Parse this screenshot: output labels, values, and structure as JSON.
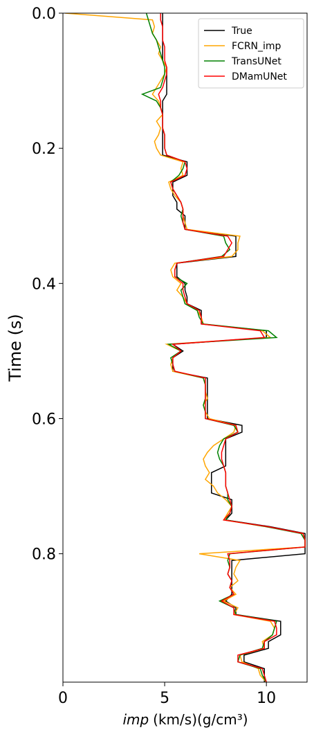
{
  "chart_data": {
    "type": "line",
    "orientation": "vertical",
    "time_axis_label": "Time (s)",
    "value_axis_label": {
      "symbol": "imp",
      "unit": "(km/s)(g/cm³)"
    },
    "x": [
      0,
      0.01,
      0.02,
      0.03,
      0.04,
      0.05,
      0.06,
      0.07,
      0.08,
      0.09,
      0.1,
      0.11,
      0.12,
      0.13,
      0.14,
      0.15,
      0.16,
      0.17,
      0.18,
      0.19,
      0.2,
      0.21,
      0.22,
      0.23,
      0.24,
      0.25,
      0.26,
      0.27,
      0.28,
      0.29,
      0.3,
      0.31,
      0.32,
      0.33,
      0.34,
      0.35,
      0.36,
      0.37,
      0.38,
      0.39,
      0.4,
      0.41,
      0.42,
      0.43,
      0.44,
      0.45,
      0.46,
      0.47,
      0.48,
      0.49,
      0.5,
      0.51,
      0.52,
      0.53,
      0.54,
      0.55,
      0.56,
      0.57,
      0.58,
      0.59,
      0.6,
      0.61,
      0.62,
      0.63,
      0.64,
      0.65,
      0.66,
      0.67,
      0.68,
      0.69,
      0.7,
      0.71,
      0.72,
      0.73,
      0.74,
      0.75,
      0.76,
      0.77,
      0.78,
      0.79,
      0.8,
      0.81,
      0.82,
      0.83,
      0.84,
      0.85,
      0.86,
      0.87,
      0.88,
      0.89,
      0.9,
      0.91,
      0.92,
      0.93,
      0.94,
      0.95,
      0.96,
      0.97,
      0.98,
      0.99
    ],
    "xlim": [
      0,
      0.99
    ],
    "xticks": [
      {
        "value": 0,
        "label": "0.0"
      },
      0.2,
      0.4,
      0.6,
      0.8
    ],
    "ylim": [
      0,
      12
    ],
    "yticks": [
      0,
      5,
      10
    ],
    "legend": "upper right",
    "series": [
      {
        "name": "True",
        "color": "#000000",
        "values": [
          4.9,
          4.9,
          4.9,
          4.9,
          4.9,
          4.9,
          4.9,
          4.9,
          5.1,
          5.1,
          5.1,
          5.1,
          5.1,
          4.9,
          4.9,
          4.9,
          4.9,
          4.9,
          4.9,
          4.9,
          4.9,
          4.9,
          6.1,
          6.1,
          6.1,
          5.4,
          5.4,
          5.4,
          5.6,
          5.6,
          6.0,
          6.0,
          6.0,
          8.5,
          8.5,
          8.5,
          8.5,
          5.6,
          5.6,
          5.6,
          6.0,
          6.0,
          6.1,
          6.1,
          6.8,
          6.8,
          6.8,
          10.0,
          10.0,
          5.4,
          5.9,
          5.4,
          5.4,
          5.4,
          7.1,
          7.1,
          7.1,
          7.1,
          7.1,
          7.1,
          7.1,
          8.8,
          8.8,
          8.0,
          8.0,
          8.0,
          8.0,
          8.0,
          7.3,
          7.3,
          7.3,
          7.3,
          8.3,
          8.3,
          8.3,
          8.0,
          10.2,
          11.9,
          11.9,
          11.9,
          11.9,
          8.3,
          8.3,
          8.3,
          8.3,
          8.3,
          8.3,
          8.0,
          8.5,
          8.5,
          10.7,
          10.7,
          10.7,
          10.1,
          10.1,
          8.9,
          8.9,
          9.9,
          9.9,
          9.9
        ]
      },
      {
        "name": "FCRN_imp",
        "color": "#ffa500",
        "values": [
          0.1,
          4.4,
          4.5,
          4.4,
          4.6,
          4.8,
          4.7,
          4.9,
          5.1,
          5.0,
          4.8,
          4.6,
          4.4,
          4.7,
          4.8,
          4.9,
          4.6,
          4.8,
          4.7,
          4.5,
          4.6,
          4.8,
          5.9,
          5.8,
          5.9,
          5.2,
          5.3,
          5.5,
          5.8,
          5.9,
          5.9,
          6.0,
          6.1,
          8.7,
          8.6,
          8.6,
          8.3,
          5.5,
          5.3,
          5.4,
          5.8,
          5.6,
          5.9,
          6.1,
          6.6,
          6.8,
          6.9,
          9.8,
          10.2,
          5.1,
          5.8,
          5.4,
          5.3,
          5.4,
          6.9,
          7.0,
          7.0,
          7.1,
          6.9,
          7.0,
          7.2,
          8.5,
          8.4,
          7.9,
          7.4,
          7.1,
          6.9,
          7.0,
          7.2,
          7.0,
          7.4,
          7.6,
          8.0,
          8.3,
          8.1,
          7.9,
          10.0,
          11.8,
          11.9,
          11.9,
          6.7,
          8.7,
          8.5,
          8.4,
          8.6,
          8.2,
          8.5,
          7.9,
          8.6,
          8.4,
          10.2,
          10.4,
          10.3,
          9.8,
          9.9,
          8.7,
          8.8,
          9.6,
          9.7,
          10.0
        ]
      },
      {
        "name": "TransUNet",
        "color": "#008000",
        "values": [
          4.1,
          4.2,
          4.3,
          4.4,
          4.6,
          4.7,
          4.8,
          4.9,
          5.0,
          5.0,
          4.9,
          4.8,
          3.9,
          4.6,
          4.8,
          4.9,
          4.9,
          4.9,
          5.0,
          5.0,
          5.0,
          5.1,
          6.0,
          5.9,
          5.7,
          5.3,
          5.4,
          5.6,
          5.8,
          5.9,
          5.8,
          5.9,
          6.0,
          7.9,
          8.0,
          8.2,
          7.8,
          5.6,
          5.5,
          5.5,
          6.1,
          5.8,
          5.9,
          6.0,
          6.6,
          6.7,
          6.9,
          10.1,
          10.5,
          5.2,
          5.8,
          5.3,
          5.4,
          5.5,
          6.9,
          7.0,
          7.0,
          7.0,
          6.9,
          7.0,
          7.0,
          8.4,
          8.6,
          7.9,
          7.7,
          7.6,
          7.7,
          7.9,
          8.0,
          8.0,
          8.0,
          8.1,
          8.1,
          8.3,
          8.2,
          8.0,
          10.0,
          11.7,
          11.9,
          11.9,
          8.2,
          8.1,
          8.2,
          8.1,
          8.3,
          8.2,
          8.4,
          7.7,
          8.4,
          8.5,
          10.5,
          10.4,
          10.3,
          9.9,
          9.8,
          8.7,
          8.6,
          9.7,
          9.8,
          10.0
        ]
      },
      {
        "name": "DMamUNet",
        "color": "#ff0000",
        "values": [
          4.8,
          4.8,
          4.9,
          4.9,
          4.9,
          5.0,
          5.0,
          5.0,
          5.1,
          5.1,
          5.0,
          4.9,
          4.7,
          4.8,
          4.8,
          4.9,
          4.9,
          4.9,
          5.0,
          5.0,
          5.0,
          5.1,
          6.0,
          6.1,
          6.0,
          5.3,
          5.4,
          5.6,
          5.8,
          5.9,
          5.9,
          5.9,
          6.0,
          8.1,
          8.3,
          8.1,
          7.9,
          5.6,
          5.5,
          5.5,
          5.9,
          5.9,
          6.0,
          6.1,
          6.7,
          6.8,
          6.8,
          9.7,
          9.9,
          5.4,
          5.8,
          5.4,
          5.4,
          5.5,
          7.0,
          7.0,
          7.0,
          7.0,
          7.0,
          7.0,
          7.0,
          8.5,
          8.6,
          8.0,
          7.9,
          7.8,
          7.8,
          7.9,
          8.0,
          8.0,
          8.0,
          8.1,
          8.2,
          8.3,
          8.2,
          7.9,
          10.1,
          11.8,
          11.9,
          11.9,
          8.1,
          8.2,
          8.2,
          8.1,
          8.3,
          8.2,
          8.4,
          7.8,
          8.4,
          8.4,
          10.4,
          10.5,
          10.5,
          9.9,
          9.9,
          8.6,
          8.6,
          9.8,
          9.9,
          10.0
        ]
      }
    ]
  }
}
